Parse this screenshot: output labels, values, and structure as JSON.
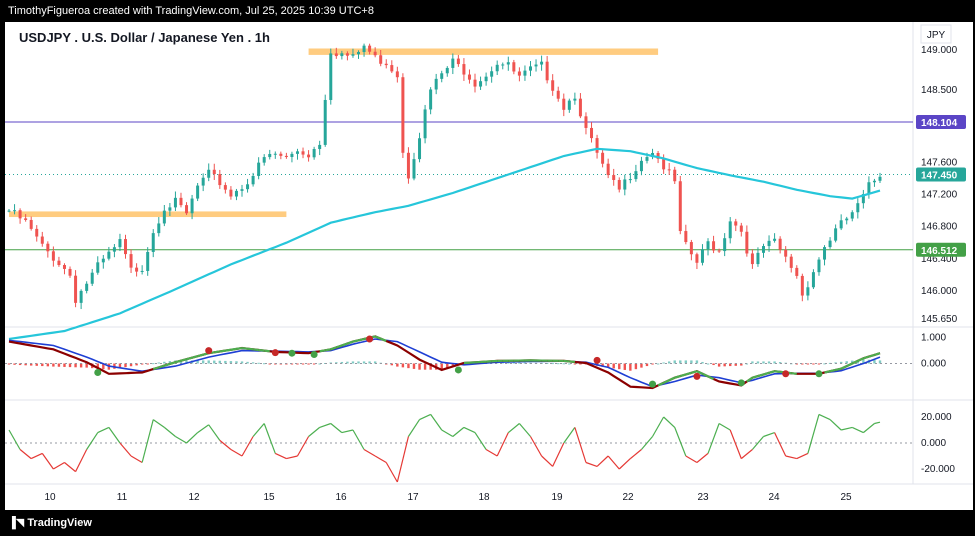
{
  "header": {
    "attribution": "TimothyFigueroa created with TradingView.com, Jul 25, 2025 10:39 UTC+8"
  },
  "footer": {
    "brand": "TradingView"
  },
  "chart": {
    "title": "USDJPY . U.S. Dollar / Japanese Yen . 1h",
    "currency": "JPY"
  },
  "colors": {
    "up": "#26a69a",
    "down": "#ef5350",
    "ema": "#26c6da",
    "tag_purple": "#5b45c6",
    "tag_teal": "#26a69a",
    "tag_green": "#43a047",
    "hline_purple": "#5b45c6",
    "hline_green": "#4caf50",
    "zone": "#ffcc80"
  },
  "chart_data": [
    {
      "type": "line",
      "name": "price",
      "title": "USDJPY . U.S. Dollar / Japanese Yen . 1h",
      "x_labels": [
        "10",
        "11",
        "12",
        "15",
        "16",
        "17",
        "18",
        "19",
        "22",
        "23",
        "24",
        "25"
      ],
      "y_ticks": [
        149.0,
        148.5,
        147.6,
        147.2,
        146.8,
        146.4,
        146.0,
        145.65
      ],
      "y_tick_labels": [
        "149.000",
        "148.500",
        "147.600",
        "147.200",
        "146.800",
        "146.400",
        "146.000",
        "145.650"
      ],
      "ylim": [
        145.55,
        149.35
      ],
      "price_path": [
        [
          0,
          147.0
        ],
        [
          3,
          146.85
        ],
        [
          6,
          146.55
        ],
        [
          9,
          146.35
        ],
        [
          11,
          146.2
        ],
        [
          12,
          145.9
        ],
        [
          14,
          146.1
        ],
        [
          16,
          146.3
        ],
        [
          18,
          146.45
        ],
        [
          20,
          146.6
        ],
        [
          22,
          146.25
        ],
        [
          24,
          146.3
        ],
        [
          26,
          146.75
        ],
        [
          28,
          147.05
        ],
        [
          30,
          147.1
        ],
        [
          32,
          146.95
        ],
        [
          34,
          147.3
        ],
        [
          36,
          147.45
        ],
        [
          38,
          147.35
        ],
        [
          40,
          147.2
        ],
        [
          42,
          147.3
        ],
        [
          44,
          147.45
        ],
        [
          46,
          147.65
        ],
        [
          48,
          147.7
        ],
        [
          50,
          147.65
        ],
        [
          52,
          147.75
        ],
        [
          54,
          147.7
        ],
        [
          56,
          147.85
        ],
        [
          58,
          149.0
        ],
        [
          60,
          148.95
        ],
        [
          62,
          148.9
        ],
        [
          64,
          149.05
        ],
        [
          66,
          148.9
        ],
        [
          68,
          148.85
        ],
        [
          70,
          148.7
        ],
        [
          71,
          147.75
        ],
        [
          72,
          147.45
        ],
        [
          74,
          147.95
        ],
        [
          76,
          148.5
        ],
        [
          78,
          148.7
        ],
        [
          80,
          148.85
        ],
        [
          82,
          148.75
        ],
        [
          84,
          148.6
        ],
        [
          86,
          148.7
        ],
        [
          88,
          148.85
        ],
        [
          90,
          148.8
        ],
        [
          92,
          148.65
        ],
        [
          94,
          148.75
        ],
        [
          96,
          148.8
        ],
        [
          98,
          148.55
        ],
        [
          100,
          148.3
        ],
        [
          102,
          148.45
        ],
        [
          104,
          148.0
        ],
        [
          106,
          147.7
        ],
        [
          108,
          147.4
        ],
        [
          110,
          147.25
        ],
        [
          112,
          147.45
        ],
        [
          114,
          147.65
        ],
        [
          116,
          147.75
        ],
        [
          118,
          147.55
        ],
        [
          120,
          147.35
        ],
        [
          121,
          146.7
        ],
        [
          122,
          146.55
        ],
        [
          124,
          146.35
        ],
        [
          126,
          146.6
        ],
        [
          128,
          146.5
        ],
        [
          130,
          146.9
        ],
        [
          132,
          146.75
        ],
        [
          134,
          146.3
        ],
        [
          136,
          146.55
        ],
        [
          138,
          146.6
        ],
        [
          140,
          146.4
        ],
        [
          142,
          146.2
        ],
        [
          143,
          145.95
        ],
        [
          145,
          146.25
        ],
        [
          147,
          146.55
        ],
        [
          149,
          146.75
        ],
        [
          151,
          146.9
        ],
        [
          153,
          147.05
        ],
        [
          155,
          147.3
        ],
        [
          157,
          147.45
        ]
      ],
      "ema200": [
        [
          0,
          145.4
        ],
        [
          10,
          145.5
        ],
        [
          20,
          145.72
        ],
        [
          30,
          146.02
        ],
        [
          40,
          146.33
        ],
        [
          50,
          146.6
        ],
        [
          58,
          146.85
        ],
        [
          66,
          146.98
        ],
        [
          72,
          147.06
        ],
        [
          80,
          147.22
        ],
        [
          90,
          147.45
        ],
        [
          100,
          147.68
        ],
        [
          106,
          147.77
        ],
        [
          112,
          147.74
        ],
        [
          118,
          147.65
        ],
        [
          124,
          147.53
        ],
        [
          130,
          147.44
        ],
        [
          136,
          147.36
        ],
        [
          142,
          147.26
        ],
        [
          148,
          147.18
        ],
        [
          152,
          147.15
        ],
        [
          157,
          147.25
        ]
      ],
      "resistance_zone": {
        "low": 148.94,
        "high": 149.02,
        "x_from": 54,
        "x_to": 117
      },
      "support_zone": {
        "low": 146.92,
        "high": 146.99,
        "x_from": 0,
        "x_to": 50
      },
      "levels": [
        {
          "value": 148.104,
          "label": "148.104",
          "style": "purple"
        },
        {
          "value": 147.45,
          "label": "147.450",
          "style": "teal"
        },
        {
          "value": 146.512,
          "label": "146.512",
          "style": "green"
        }
      ]
    },
    {
      "type": "line",
      "name": "macd",
      "y_ticks": [
        1.0,
        0.0
      ],
      "y_tick_labels": [
        "1.000",
        "0.000"
      ],
      "ylim": [
        -1.3,
        1.3
      ],
      "macd": [
        [
          0,
          0.85
        ],
        [
          8,
          0.55
        ],
        [
          14,
          0.05
        ],
        [
          18,
          -0.4
        ],
        [
          24,
          -0.35
        ],
        [
          30,
          0.05
        ],
        [
          36,
          0.4
        ],
        [
          42,
          0.6
        ],
        [
          48,
          0.45
        ],
        [
          54,
          0.4
        ],
        [
          58,
          0.55
        ],
        [
          62,
          0.85
        ],
        [
          66,
          1.05
        ],
        [
          70,
          0.7
        ],
        [
          74,
          0.15
        ],
        [
          78,
          -0.25
        ],
        [
          82,
          0.02
        ],
        [
          88,
          0.1
        ],
        [
          94,
          0.12
        ],
        [
          100,
          0.1
        ],
        [
          104,
          0.02
        ],
        [
          108,
          -0.35
        ],
        [
          112,
          -0.9
        ],
        [
          116,
          -0.95
        ],
        [
          120,
          -0.55
        ],
        [
          124,
          -0.3
        ],
        [
          128,
          -0.7
        ],
        [
          132,
          -0.85
        ],
        [
          134,
          -0.55
        ],
        [
          138,
          -0.3
        ],
        [
          142,
          -0.4
        ],
        [
          146,
          -0.4
        ],
        [
          150,
          -0.2
        ],
        [
          154,
          0.2
        ],
        [
          157,
          0.4
        ]
      ],
      "signal": [
        [
          0,
          0.9
        ],
        [
          8,
          0.7
        ],
        [
          14,
          0.25
        ],
        [
          18,
          -0.1
        ],
        [
          24,
          -0.3
        ],
        [
          30,
          -0.1
        ],
        [
          36,
          0.25
        ],
        [
          42,
          0.5
        ],
        [
          48,
          0.48
        ],
        [
          54,
          0.45
        ],
        [
          58,
          0.5
        ],
        [
          62,
          0.75
        ],
        [
          66,
          0.95
        ],
        [
          70,
          0.85
        ],
        [
          74,
          0.45
        ],
        [
          78,
          0.05
        ],
        [
          82,
          -0.05
        ],
        [
          88,
          0.05
        ],
        [
          94,
          0.08
        ],
        [
          100,
          0.09
        ],
        [
          104,
          0.05
        ],
        [
          108,
          -0.15
        ],
        [
          112,
          -0.55
        ],
        [
          116,
          -0.9
        ],
        [
          120,
          -0.7
        ],
        [
          124,
          -0.45
        ],
        [
          128,
          -0.55
        ],
        [
          132,
          -0.75
        ],
        [
          134,
          -0.65
        ],
        [
          138,
          -0.4
        ],
        [
          142,
          -0.38
        ],
        [
          146,
          -0.38
        ],
        [
          150,
          -0.28
        ],
        [
          154,
          0.0
        ],
        [
          157,
          0.25
        ]
      ],
      "cross_points": [
        [
          16,
          -0.35,
          "green"
        ],
        [
          36,
          0.5,
          "red"
        ],
        [
          48,
          0.42,
          "red"
        ],
        [
          51,
          0.4,
          "green"
        ],
        [
          55,
          0.35,
          "green"
        ],
        [
          65,
          0.95,
          "red"
        ],
        [
          81,
          -0.25,
          "green"
        ],
        [
          106,
          0.12,
          "red"
        ],
        [
          116,
          -0.8,
          "green"
        ],
        [
          124,
          -0.5,
          "red"
        ],
        [
          132,
          -0.75,
          "green"
        ],
        [
          140,
          -0.4,
          "red"
        ],
        [
          146,
          -0.4,
          "green"
        ]
      ]
    },
    {
      "type": "line",
      "name": "oscillator",
      "y_ticks": [
        20.0,
        0.0,
        -20.0
      ],
      "y_tick_labels": [
        "20.000",
        "0.000",
        "-20.000"
      ],
      "ylim": [
        -30,
        30
      ],
      "series": [
        [
          0,
          10
        ],
        [
          2,
          -5
        ],
        [
          4,
          -12
        ],
        [
          6,
          -8
        ],
        [
          8,
          -20
        ],
        [
          10,
          -15
        ],
        [
          12,
          -22
        ],
        [
          14,
          -5
        ],
        [
          16,
          8
        ],
        [
          18,
          12
        ],
        [
          20,
          0
        ],
        [
          22,
          -10
        ],
        [
          24,
          -15
        ],
        [
          26,
          18
        ],
        [
          28,
          12
        ],
        [
          30,
          5
        ],
        [
          32,
          0
        ],
        [
          34,
          8
        ],
        [
          36,
          14
        ],
        [
          38,
          2
        ],
        [
          40,
          -5
        ],
        [
          42,
          -10
        ],
        [
          44,
          5
        ],
        [
          46,
          15
        ],
        [
          48,
          -8
        ],
        [
          50,
          -12
        ],
        [
          52,
          -10
        ],
        [
          54,
          5
        ],
        [
          56,
          12
        ],
        [
          58,
          15
        ],
        [
          60,
          8
        ],
        [
          62,
          10
        ],
        [
          64,
          -5
        ],
        [
          66,
          -10
        ],
        [
          68,
          -15
        ],
        [
          70,
          -30
        ],
        [
          72,
          5
        ],
        [
          74,
          18
        ],
        [
          76,
          22
        ],
        [
          78,
          10
        ],
        [
          80,
          5
        ],
        [
          82,
          12
        ],
        [
          84,
          8
        ],
        [
          86,
          -5
        ],
        [
          88,
          -10
        ],
        [
          90,
          8
        ],
        [
          92,
          15
        ],
        [
          94,
          5
        ],
        [
          96,
          -10
        ],
        [
          98,
          -18
        ],
        [
          100,
          0
        ],
        [
          102,
          12
        ],
        [
          104,
          -15
        ],
        [
          106,
          -18
        ],
        [
          108,
          -10
        ],
        [
          110,
          -20
        ],
        [
          112,
          -12
        ],
        [
          114,
          -5
        ],
        [
          116,
          5
        ],
        [
          118,
          20
        ],
        [
          120,
          12
        ],
        [
          122,
          -10
        ],
        [
          124,
          -15
        ],
        [
          126,
          -8
        ],
        [
          128,
          15
        ],
        [
          130,
          10
        ],
        [
          132,
          -12
        ],
        [
          134,
          -5
        ],
        [
          136,
          5
        ],
        [
          138,
          8
        ],
        [
          140,
          -10
        ],
        [
          142,
          -12
        ],
        [
          144,
          -8
        ],
        [
          146,
          22
        ],
        [
          148,
          18
        ],
        [
          150,
          10
        ],
        [
          152,
          12
        ],
        [
          154,
          8
        ],
        [
          156,
          15
        ],
        [
          157,
          16
        ]
      ]
    }
  ]
}
